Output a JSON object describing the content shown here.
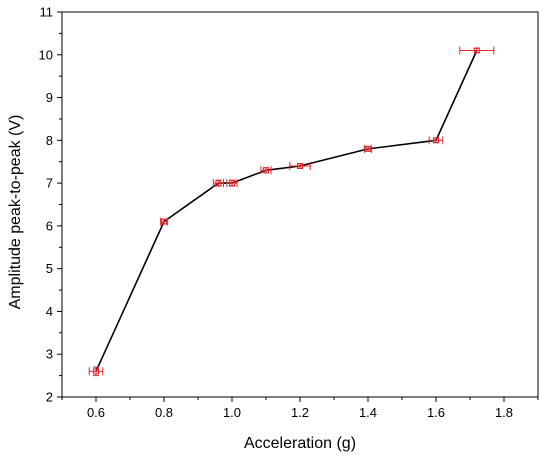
{
  "chart_data": {
    "type": "line",
    "title": "",
    "xlabel": "Acceleration (g)",
    "ylabel": "Amplitude peak-to-peak (V)",
    "xlim": [
      0.5,
      1.9
    ],
    "ylim": [
      2,
      11
    ],
    "xticks": [
      "0.6",
      "0.8",
      "1.0",
      "1.2",
      "1.4",
      "1.6",
      "1.8"
    ],
    "yticks": [
      "2",
      "3",
      "4",
      "5",
      "6",
      "7",
      "8",
      "9",
      "10",
      "11"
    ],
    "grid": false,
    "series": [
      {
        "x": [
          0.6,
          0.8,
          0.96,
          1.0,
          1.1,
          1.2,
          1.4,
          1.6,
          1.72
        ],
        "y": [
          2.6,
          6.1,
          7.0,
          7.0,
          7.3,
          7.4,
          7.8,
          8.0,
          10.1
        ],
        "x_err": [
          0.02,
          0.01,
          0.015,
          0.015,
          0.015,
          0.03,
          0.01,
          0.02,
          0.05
        ],
        "y_err": [
          0.1,
          0.05,
          0.07,
          0.07,
          0.06,
          0.05,
          0.05,
          0.05,
          0.05
        ],
        "line_color": "#000000",
        "marker_color": "#e8242c"
      }
    ]
  }
}
